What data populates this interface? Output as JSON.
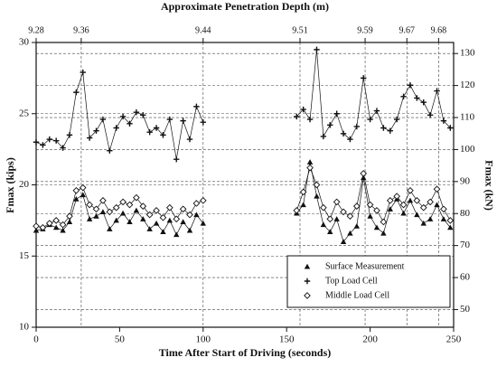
{
  "chart_data": {
    "type": "line",
    "x2_label": "Approximate Penetration Depth (m)",
    "x_label": "Time After Start of Driving (seconds)",
    "y_label": "Fmax (kips)",
    "y2_label": "Fmax (kN)",
    "xlim": [
      0,
      250
    ],
    "xticks": [
      0,
      50,
      100,
      150,
      200,
      250
    ],
    "x2ticks": [
      {
        "value": 0,
        "label": "9.28"
      },
      {
        "value": 27,
        "label": "9.36"
      },
      {
        "value": 100,
        "label": "9.44"
      },
      {
        "value": 158,
        "label": "9.51"
      },
      {
        "value": 197,
        "label": "9.59"
      },
      {
        "value": 222,
        "label": "9.67"
      },
      {
        "value": 241,
        "label": "9.68"
      }
    ],
    "ylim": [
      10,
      30
    ],
    "yticks": [
      10,
      15,
      20,
      25,
      30
    ],
    "y2lim": [
      44.48,
      133.45
    ],
    "y2ticks": [
      50,
      60,
      70,
      80,
      90,
      100,
      110,
      120,
      130
    ],
    "grid": true,
    "legend": "lower right",
    "x": [
      0,
      4,
      8,
      12,
      16,
      20,
      24,
      28,
      32,
      36,
      40,
      44,
      48,
      52,
      56,
      60,
      64,
      68,
      72,
      76,
      80,
      84,
      88,
      92,
      96,
      100,
      128,
      156,
      160,
      164,
      168,
      172,
      176,
      180,
      184,
      188,
      192,
      196,
      200,
      204,
      208,
      212,
      216,
      220,
      224,
      228,
      232,
      236,
      240,
      244,
      248
    ],
    "series": [
      {
        "name": "Surface Measurement",
        "color": "#111111",
        "marker": "triangle",
        "values": [
          16.8,
          16.9,
          17.2,
          17.0,
          16.8,
          17.4,
          19.0,
          19.3,
          17.6,
          17.8,
          18.1,
          16.9,
          17.5,
          18.0,
          17.4,
          18.2,
          17.6,
          16.9,
          17.3,
          16.7,
          17.5,
          16.5,
          17.4,
          16.8,
          17.9,
          17.3,
          null,
          18.0,
          18.6,
          21.6,
          19.2,
          17.2,
          16.7,
          17.6,
          16.0,
          16.6,
          17.1,
          20.5,
          17.8,
          17.0,
          16.6,
          18.3,
          19.0,
          18.0,
          18.9,
          17.9,
          17.3,
          17.6,
          18.6,
          17.6,
          17.0
        ]
      },
      {
        "name": "Top Load Cell",
        "color": "#111111",
        "marker": "plus",
        "values": [
          23.0,
          22.8,
          23.2,
          23.1,
          22.6,
          23.5,
          26.5,
          27.9,
          23.3,
          23.8,
          24.6,
          22.4,
          24.0,
          24.8,
          24.3,
          25.1,
          24.9,
          23.7,
          24.0,
          23.5,
          24.6,
          21.8,
          24.5,
          23.2,
          25.5,
          24.4,
          null,
          24.8,
          25.3,
          24.6,
          29.5,
          23.4,
          24.2,
          25.0,
          23.6,
          23.2,
          24.1,
          27.5,
          24.6,
          25.2,
          24.0,
          23.8,
          24.6,
          26.2,
          27.0,
          26.1,
          25.8,
          24.9,
          26.6,
          24.5,
          24.0
        ]
      },
      {
        "name": "Middle Load Cell",
        "color": "#111111",
        "marker": "diamond",
        "values": [
          17.1,
          17.0,
          17.3,
          17.5,
          17.2,
          17.8,
          19.6,
          19.8,
          18.6,
          18.3,
          18.9,
          18.1,
          18.4,
          18.8,
          18.6,
          19.1,
          18.5,
          17.9,
          18.2,
          17.7,
          18.4,
          17.6,
          18.3,
          17.9,
          18.7,
          18.9,
          null,
          18.2,
          19.5,
          21.2,
          20.0,
          18.4,
          17.6,
          18.8,
          18.1,
          17.8,
          18.5,
          20.8,
          18.6,
          18.2,
          17.4,
          18.9,
          19.2,
          18.6,
          19.6,
          18.9,
          18.4,
          18.8,
          19.7,
          18.3,
          17.5
        ]
      }
    ]
  }
}
